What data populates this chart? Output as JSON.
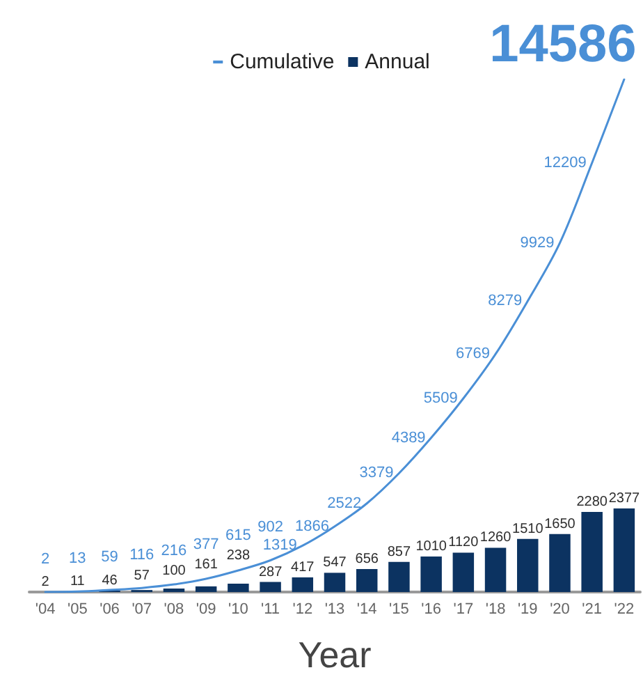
{
  "chart_data": {
    "type": "bar",
    "xlabel": "Year",
    "categories": [
      "'04",
      "'05",
      "'06",
      "'07",
      "'08",
      "'09",
      "'10",
      "'11",
      "'12",
      "'13",
      "'14",
      "'15",
      "'16",
      "'17",
      "'18",
      "'19",
      "'20",
      "'21",
      "'22"
    ],
    "series": [
      {
        "name": "Cumulative",
        "type": "line",
        "color": "#4a8fd6",
        "values": [
          2,
          13,
          59,
          116,
          216,
          377,
          615,
          902,
          1319,
          1866,
          2522,
          3379,
          4389,
          5509,
          6769,
          8279,
          9929,
          12209,
          14586
        ]
      },
      {
        "name": "Annual",
        "type": "bar",
        "color": "#0c3361",
        "values": [
          2,
          11,
          46,
          57,
          100,
          161,
          238,
          287,
          417,
          547,
          656,
          857,
          1010,
          1120,
          1260,
          1510,
          1650,
          2280,
          2377
        ]
      }
    ],
    "data_labels": true,
    "legend": "top",
    "marker": "none",
    "line_style": "solid",
    "grid": false,
    "tick_labels": "x"
  }
}
